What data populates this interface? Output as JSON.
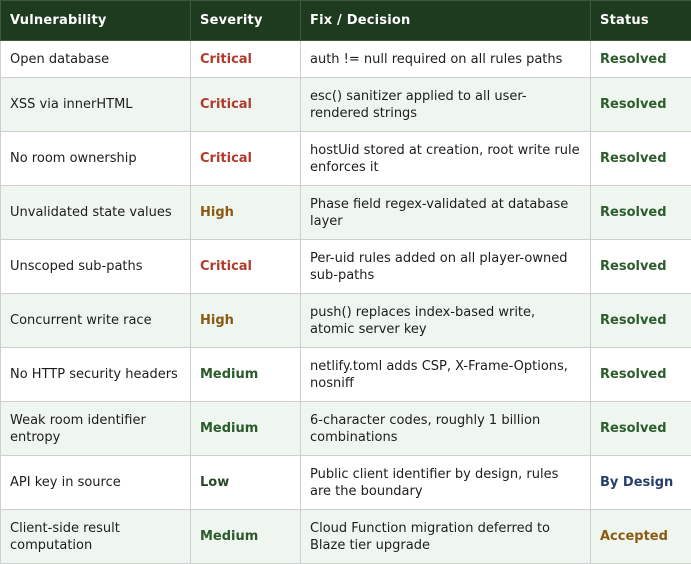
{
  "headers": [
    "Vulnerability",
    "Severity",
    "Fix / Decision",
    "Status"
  ],
  "colors": {
    "header_bg": "#1f3b1f",
    "row_alt_bg": "#eff6ef",
    "critical": "#b23a2a",
    "high": "#8a5a12",
    "medium": "#2b5a2b",
    "low": "#2b4a2b",
    "resolved": "#2d5c2d",
    "by_design": "#27406a",
    "accepted": "#8a5a12"
  },
  "rows": [
    {
      "vulnerability": "Open database",
      "severity": "Critical",
      "fix": "auth != null required on all rules paths",
      "status": "Resolved"
    },
    {
      "vulnerability": "XSS via innerHTML",
      "severity": "Critical",
      "fix": "esc() sanitizer applied to all user-rendered strings",
      "status": "Resolved"
    },
    {
      "vulnerability": "No room ownership",
      "severity": "Critical",
      "fix": "hostUid stored at creation, root write rule enforces it",
      "status": "Resolved"
    },
    {
      "vulnerability": "Unvalidated state values",
      "severity": "High",
      "fix": "Phase field regex-validated at database layer",
      "status": "Resolved"
    },
    {
      "vulnerability": "Unscoped sub-paths",
      "severity": "Critical",
      "fix": "Per-uid rules added on all player-owned sub-paths",
      "status": "Resolved"
    },
    {
      "vulnerability": "Concurrent write race",
      "severity": "High",
      "fix": "push() replaces index-based write, atomic server key",
      "status": "Resolved"
    },
    {
      "vulnerability": "No HTTP security headers",
      "severity": "Medium",
      "fix": "netlify.toml adds CSP, X-Frame-Options, nosniff",
      "status": "Resolved"
    },
    {
      "vulnerability": "Weak room identifier entropy",
      "severity": "Medium",
      "fix": "6-character codes, roughly 1 billion combinations",
      "status": "Resolved"
    },
    {
      "vulnerability": "API key in source",
      "severity": "Low",
      "fix": "Public client identifier by design, rules are the boundary",
      "status": "By Design"
    },
    {
      "vulnerability": "Client-side result computation",
      "severity": "Medium",
      "fix": "Cloud Function migration deferred to Blaze tier upgrade",
      "status": "Accepted"
    }
  ]
}
